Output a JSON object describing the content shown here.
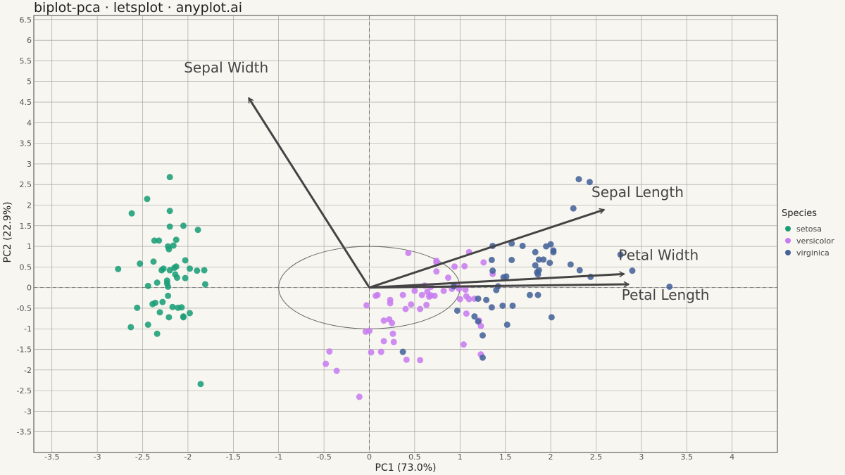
{
  "chart_data": {
    "type": "scatter",
    "title": "biplot-pca · letsplot · anyplot.ai",
    "xlabel": "PC1 (73.0%)",
    "ylabel": "PC2 (22.9%)",
    "xlim": [
      -3.7,
      4.5
    ],
    "ylim": [
      -4.0,
      6.6
    ],
    "x_ticks": [
      -3.5,
      -3,
      -2.5,
      -2,
      -1.5,
      -1,
      -0.5,
      0,
      0.5,
      1,
      1.5,
      2,
      2.5,
      3,
      3.5,
      4
    ],
    "x_tick_labels": [
      "-3.5",
      "-3",
      "-2.5",
      "-2",
      "-1.5",
      "-1",
      "-0.5",
      "0",
      "0.5",
      "1",
      "1.5",
      "2",
      "2.5",
      "3",
      "3.5",
      "4"
    ],
    "y_ticks": [
      -3.5,
      -3,
      -2.5,
      -2,
      -1.5,
      -1,
      -0.5,
      0,
      0.5,
      1,
      1.5,
      2,
      2.5,
      3,
      3.5,
      4,
      4.5,
      5,
      5.5,
      6,
      6.5
    ],
    "y_tick_labels": [
      "-3.5",
      "-3",
      "-2.5",
      "-2",
      "-1.5",
      "-1",
      "-0.5",
      "0",
      "0.5",
      "1",
      "1.5",
      "2",
      "2.5",
      "3",
      "3.5",
      "4",
      "4.5",
      "5",
      "5.5",
      "6",
      "6.5"
    ],
    "grid": true,
    "reference_lines": {
      "x": 0,
      "y": 0,
      "style": "dashed"
    },
    "ellipse": {
      "center": [
        0,
        0
      ],
      "rx": 1.0,
      "ry": 1.0,
      "stroke": "#666666"
    },
    "legend": {
      "title": "Species",
      "placement": "right"
    },
    "series": [
      {
        "name": "setosa",
        "color": "#1A9E77",
        "points": [
          [
            -2.2,
            2.68
          ],
          [
            -2.45,
            2.15
          ],
          [
            -2.62,
            1.8
          ],
          [
            -2.2,
            1.86
          ],
          [
            -2.2,
            1.48
          ],
          [
            -2.05,
            1.5
          ],
          [
            -1.89,
            1.4
          ],
          [
            -2.37,
            1.14
          ],
          [
            -2.32,
            1.14
          ],
          [
            -2.13,
            1.16
          ],
          [
            -2.22,
            1.0
          ],
          [
            -2.16,
            1.02
          ],
          [
            -2.21,
            0.93
          ],
          [
            -2.77,
            0.45
          ],
          [
            -2.53,
            0.58
          ],
          [
            -2.38,
            0.63
          ],
          [
            -2.03,
            0.66
          ],
          [
            -2.13,
            0.51
          ],
          [
            -2.15,
            0.48
          ],
          [
            -2.2,
            0.42
          ],
          [
            -2.27,
            0.46
          ],
          [
            -2.29,
            0.42
          ],
          [
            -1.98,
            0.46
          ],
          [
            -1.9,
            0.41
          ],
          [
            -1.82,
            0.42
          ],
          [
            -2.14,
            0.32
          ],
          [
            -2.12,
            0.24
          ],
          [
            -2.03,
            0.23
          ],
          [
            -2.23,
            0.17
          ],
          [
            -2.23,
            0.1
          ],
          [
            -2.34,
            0.12
          ],
          [
            -2.44,
            0.04
          ],
          [
            -2.22,
            0.02
          ],
          [
            -1.81,
            0.08
          ],
          [
            -2.22,
            -0.2
          ],
          [
            -2.28,
            -0.35
          ],
          [
            -2.36,
            -0.37
          ],
          [
            -2.39,
            -0.4
          ],
          [
            -2.17,
            -0.47
          ],
          [
            -2.11,
            -0.49
          ],
          [
            -2.07,
            -0.48
          ],
          [
            -2.56,
            -0.49
          ],
          [
            -1.98,
            -0.62
          ],
          [
            -2.31,
            -0.6
          ],
          [
            -2.21,
            -0.72
          ],
          [
            -2.05,
            -0.7
          ],
          [
            -2.05,
            -0.72
          ],
          [
            -2.44,
            -0.9
          ],
          [
            -2.63,
            -0.96
          ],
          [
            -2.34,
            -1.12
          ],
          [
            -1.86,
            -2.34
          ]
        ]
      },
      {
        "name": "versicolor",
        "color": "#C77DEF",
        "points": [
          [
            0.43,
            0.84
          ],
          [
            0.74,
            0.65
          ],
          [
            1.1,
            0.86
          ],
          [
            0.74,
            0.61
          ],
          [
            0.94,
            0.51
          ],
          [
            1.05,
            0.52
          ],
          [
            1.26,
            0.61
          ],
          [
            1.36,
            0.33
          ],
          [
            0.74,
            0.39
          ],
          [
            0.87,
            0.24
          ],
          [
            0.96,
            0.06
          ],
          [
            0.99,
            -0.03
          ],
          [
            0.61,
            0.05
          ],
          [
            0.68,
            0.02
          ],
          [
            0.5,
            -0.08
          ],
          [
            0.64,
            -0.1
          ],
          [
            0.58,
            -0.18
          ],
          [
            0.68,
            -0.19
          ],
          [
            0.72,
            -0.2
          ],
          [
            0.82,
            -0.08
          ],
          [
            0.91,
            -0.03
          ],
          [
            1.06,
            -0.05
          ],
          [
            1.07,
            -0.21
          ],
          [
            1.16,
            -0.27
          ],
          [
            1.0,
            -0.28
          ],
          [
            1.1,
            -0.28
          ],
          [
            0.66,
            -0.22
          ],
          [
            0.07,
            -0.2
          ],
          [
            0.09,
            -0.18
          ],
          [
            0.37,
            -0.18
          ],
          [
            0.23,
            -0.3
          ],
          [
            0.23,
            -0.38
          ],
          [
            0.46,
            -0.41
          ],
          [
            0.63,
            -0.42
          ],
          [
            -0.03,
            -0.43
          ],
          [
            0.4,
            -0.52
          ],
          [
            0.56,
            -0.52
          ],
          [
            1.07,
            -0.63
          ],
          [
            1.21,
            -0.8
          ],
          [
            1.23,
            -0.93
          ],
          [
            0.22,
            -0.77
          ],
          [
            0.16,
            -0.8
          ],
          [
            0.25,
            -0.86
          ],
          [
            0.26,
            -1.12
          ],
          [
            -0.0,
            -1.05
          ],
          [
            -0.04,
            -1.07
          ],
          [
            0.16,
            -1.3
          ],
          [
            0.27,
            -1.32
          ],
          [
            1.04,
            -1.38
          ],
          [
            -0.44,
            -1.55
          ],
          [
            0.02,
            -1.57
          ],
          [
            0.13,
            -1.56
          ],
          [
            1.23,
            -1.62
          ],
          [
            0.41,
            -1.75
          ],
          [
            0.56,
            -1.76
          ],
          [
            -0.48,
            -1.85
          ],
          [
            -0.36,
            -2.02
          ],
          [
            -0.11,
            -2.65
          ]
        ]
      },
      {
        "name": "virginica",
        "color": "#44639A",
        "points": [
          [
            2.31,
            2.63
          ],
          [
            2.43,
            2.56
          ],
          [
            2.25,
            1.92
          ],
          [
            1.36,
            1.01
          ],
          [
            1.57,
            1.07
          ],
          [
            1.69,
            1.01
          ],
          [
            1.95,
            1.0
          ],
          [
            2.0,
            1.05
          ],
          [
            2.03,
            0.9
          ],
          [
            2.03,
            0.86
          ],
          [
            1.83,
            0.86
          ],
          [
            1.35,
            0.67
          ],
          [
            1.57,
            0.67
          ],
          [
            1.87,
            0.68
          ],
          [
            1.92,
            0.68
          ],
          [
            1.99,
            0.6
          ],
          [
            2.22,
            0.56
          ],
          [
            1.83,
            0.54
          ],
          [
            1.36,
            0.41
          ],
          [
            1.87,
            0.42
          ],
          [
            1.85,
            0.37
          ],
          [
            2.32,
            0.42
          ],
          [
            2.9,
            0.41
          ],
          [
            2.77,
            0.8
          ],
          [
            1.51,
            0.27
          ],
          [
            1.48,
            0.25
          ],
          [
            1.86,
            0.32
          ],
          [
            2.44,
            0.26
          ],
          [
            1.42,
            0.03
          ],
          [
            0.93,
            0.03
          ],
          [
            1.4,
            -0.06
          ],
          [
            1.77,
            -0.18
          ],
          [
            1.86,
            -0.18
          ],
          [
            1.2,
            -0.27
          ],
          [
            1.29,
            -0.3
          ],
          [
            1.47,
            -0.44
          ],
          [
            1.35,
            -0.48
          ],
          [
            1.58,
            -0.44
          ],
          [
            0.97,
            -0.56
          ],
          [
            1.16,
            -0.7
          ],
          [
            1.2,
            -0.82
          ],
          [
            1.52,
            -0.9
          ],
          [
            2.01,
            -0.72
          ],
          [
            1.25,
            -1.16
          ],
          [
            1.25,
            -1.7
          ],
          [
            0.37,
            -1.56
          ],
          [
            3.31,
            0.02
          ]
        ]
      }
    ],
    "loadings": [
      {
        "label": "Sepal Length",
        "x": 2.59,
        "y": 1.89
      },
      {
        "label": "Sepal Width",
        "x": -1.33,
        "y": 4.6
      },
      {
        "label": "Petal Length",
        "x": 2.86,
        "y": 0.08
      },
      {
        "label": "Petal Width",
        "x": 2.81,
        "y": 0.33
      }
    ]
  }
}
